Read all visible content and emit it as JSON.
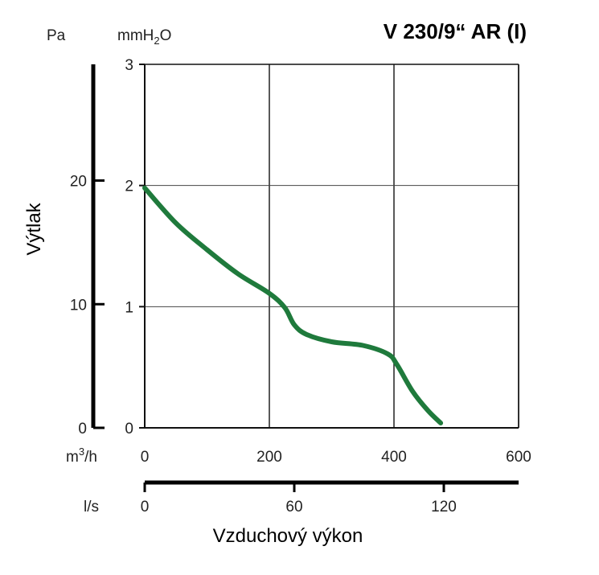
{
  "chart_data": {
    "type": "line",
    "title": "V 230/9“ AR (I)",
    "ylabel": "Výtlak",
    "xlabel": "Vzduchový výkon",
    "unit_pa": "Pa",
    "unit_mmh2o_main": "mmH",
    "unit_mmh2o_sub": "2",
    "unit_mmh2o_end": "O",
    "unit_m3h_main": "m",
    "unit_m3h_sup": "3",
    "unit_m3h_end": "/h",
    "unit_ls": "l/s",
    "x_m3h": {
      "range": [
        0,
        600
      ],
      "ticks": [
        0,
        200,
        400,
        600
      ],
      "tick_labels": [
        "0",
        "200",
        "400",
        "600"
      ]
    },
    "x_ls": {
      "range": [
        0,
        150
      ],
      "ticks": [
        0,
        60,
        120
      ],
      "tick_labels": [
        "0",
        "60",
        "120"
      ]
    },
    "y_mmh2o": {
      "range": [
        0,
        3
      ],
      "ticks": [
        0,
        1,
        2,
        3
      ],
      "tick_labels": [
        "0",
        "1",
        "2",
        "3"
      ]
    },
    "y_pa": {
      "range": [
        0,
        29.4
      ],
      "ticks": [
        0,
        10,
        20
      ],
      "tick_labels": [
        "0",
        "10",
        "20"
      ]
    },
    "grid": true,
    "series": [
      {
        "color": "#1f7a3c",
        "x": [
          0,
          50,
          100,
          150,
          200,
          225,
          240,
          260,
          300,
          350,
          390,
          405,
          430,
          455,
          475
        ],
        "y": [
          1.98,
          1.69,
          1.47,
          1.27,
          1.11,
          0.99,
          0.85,
          0.77,
          0.71,
          0.68,
          0.61,
          0.52,
          0.3,
          0.14,
          0.04
        ]
      }
    ]
  }
}
